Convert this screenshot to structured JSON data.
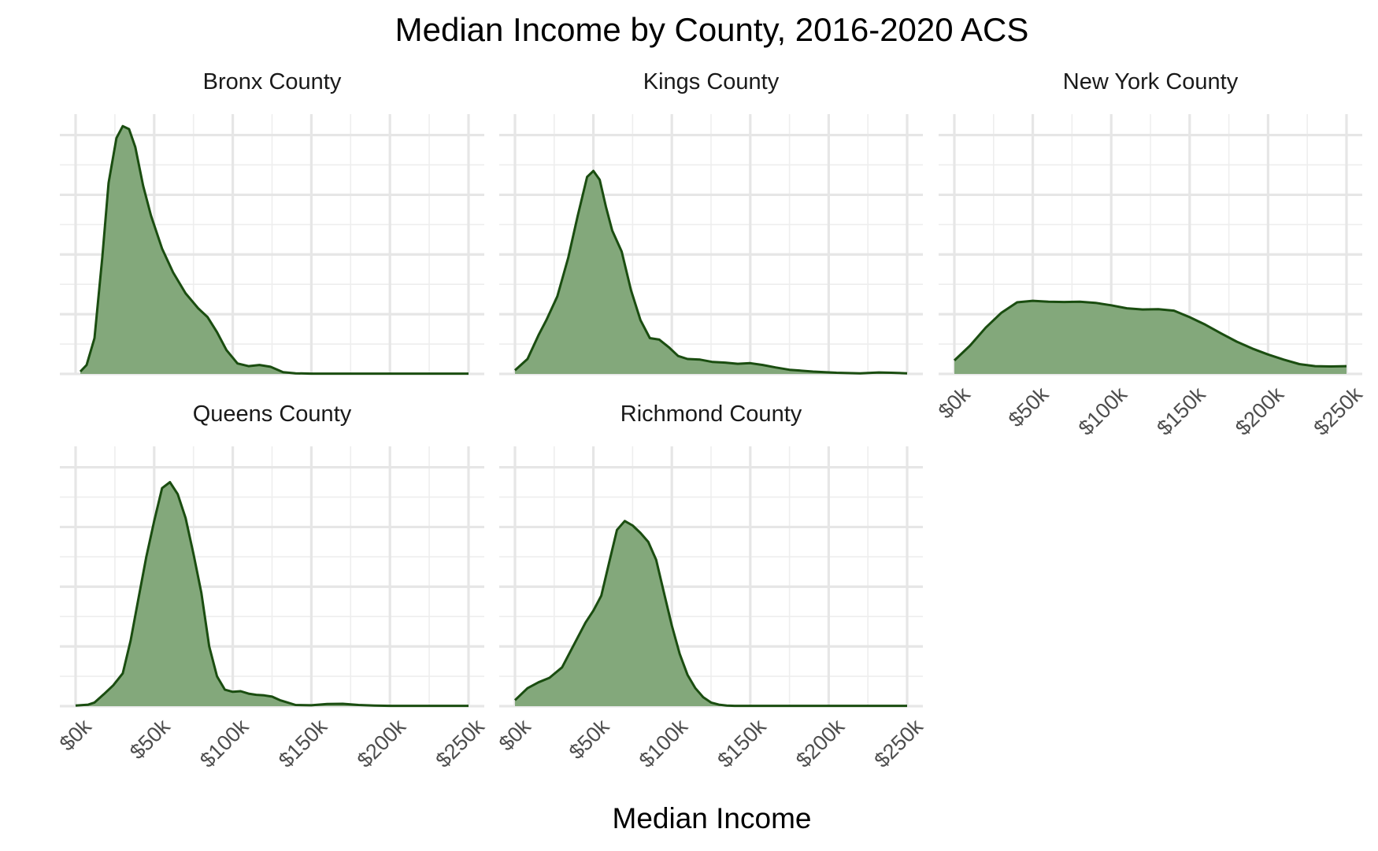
{
  "chart_data": {
    "type": "area",
    "title": "Median Income by County, 2016-2020 ACS",
    "xlabel": "Median Income",
    "ylabel": "",
    "xlim": [
      0,
      250000
    ],
    "x_ticks": [
      0,
      50000,
      100000,
      150000,
      200000,
      250000
    ],
    "x_tick_labels": [
      "$0k",
      "$50k",
      "$100k",
      "$150k",
      "$200k",
      "$250k"
    ],
    "y_tick_labels_shown": false,
    "grid": true,
    "fill_color": "#83a87b",
    "line_color": "#1a4d10",
    "panels": [
      {
        "name": "Bronx County",
        "x": [
          3000,
          7000,
          12000,
          17000,
          21000,
          26000,
          30000,
          34000,
          38000,
          43000,
          48000,
          55000,
          62000,
          70000,
          78000,
          84000,
          90000,
          96000,
          103000,
          110000,
          117000,
          124000,
          132000,
          140000,
          150000,
          175000,
          200000,
          225000,
          250000
        ],
        "y": [
          0.08,
          0.3,
          1.2,
          3.9,
          6.4,
          7.9,
          8.3,
          8.2,
          7.6,
          6.3,
          5.3,
          4.2,
          3.4,
          2.7,
          2.2,
          1.9,
          1.4,
          0.8,
          0.35,
          0.26,
          0.3,
          0.24,
          0.06,
          0.02,
          0.01,
          0.01,
          0.01,
          0.01,
          0.01
        ]
      },
      {
        "name": "Kings County",
        "x": [
          0,
          8000,
          15000,
          20000,
          27000,
          34000,
          40000,
          46000,
          50000,
          54000,
          58000,
          62000,
          68000,
          74000,
          80000,
          86000,
          92000,
          98000,
          104000,
          110000,
          118000,
          126000,
          134000,
          142000,
          150000,
          158000,
          166000,
          175000,
          190000,
          205000,
          220000,
          232000,
          240000,
          250000
        ],
        "y": [
          0.12,
          0.5,
          1.3,
          1.8,
          2.6,
          3.9,
          5.3,
          6.6,
          6.8,
          6.5,
          5.6,
          4.8,
          4.1,
          2.8,
          1.8,
          1.2,
          1.15,
          0.9,
          0.6,
          0.5,
          0.48,
          0.4,
          0.38,
          0.34,
          0.36,
          0.3,
          0.22,
          0.14,
          0.08,
          0.04,
          0.02,
          0.05,
          0.04,
          0.02
        ]
      },
      {
        "name": "New York County",
        "x": [
          0,
          10000,
          20000,
          30000,
          40000,
          50000,
          60000,
          70000,
          80000,
          90000,
          100000,
          110000,
          120000,
          130000,
          140000,
          150000,
          160000,
          170000,
          180000,
          190000,
          200000,
          210000,
          220000,
          230000,
          240000,
          250000
        ],
        "y": [
          0.45,
          0.95,
          1.55,
          2.05,
          2.4,
          2.45,
          2.42,
          2.41,
          2.42,
          2.38,
          2.3,
          2.2,
          2.16,
          2.17,
          2.12,
          1.9,
          1.65,
          1.36,
          1.08,
          0.85,
          0.65,
          0.48,
          0.33,
          0.26,
          0.25,
          0.26
        ]
      },
      {
        "name": "Queens County",
        "x": [
          0,
          8000,
          12000,
          18000,
          24000,
          30000,
          35000,
          40000,
          45000,
          50000,
          55000,
          60000,
          65000,
          70000,
          75000,
          80000,
          85000,
          90000,
          95000,
          100000,
          105000,
          110000,
          115000,
          120000,
          125000,
          130000,
          140000,
          150000,
          160000,
          170000,
          180000,
          190000,
          200000,
          225000,
          250000
        ],
        "y": [
          0.02,
          0.05,
          0.12,
          0.4,
          0.7,
          1.1,
          2.2,
          3.6,
          5.0,
          6.2,
          7.3,
          7.5,
          7.1,
          6.3,
          5.1,
          3.8,
          2.0,
          1.0,
          0.55,
          0.48,
          0.5,
          0.42,
          0.38,
          0.36,
          0.32,
          0.2,
          0.04,
          0.03,
          0.07,
          0.08,
          0.04,
          0.02,
          0.01,
          0.01,
          0.01
        ]
      },
      {
        "name": "Richmond County",
        "x": [
          0,
          8000,
          15000,
          22000,
          30000,
          38000,
          45000,
          50000,
          55000,
          60000,
          65000,
          70000,
          75000,
          80000,
          85000,
          90000,
          95000,
          100000,
          105000,
          110000,
          115000,
          120000,
          125000,
          130000,
          135000,
          140000,
          150000,
          175000,
          200000,
          225000,
          250000
        ],
        "y": [
          0.2,
          0.6,
          0.8,
          0.95,
          1.3,
          2.1,
          2.8,
          3.2,
          3.7,
          4.8,
          5.9,
          6.2,
          6.05,
          5.8,
          5.5,
          4.9,
          3.8,
          2.7,
          1.75,
          1.05,
          0.6,
          0.3,
          0.12,
          0.05,
          0.02,
          0.01,
          0.01,
          0.01,
          0.01,
          0.01,
          0.01
        ]
      }
    ]
  }
}
